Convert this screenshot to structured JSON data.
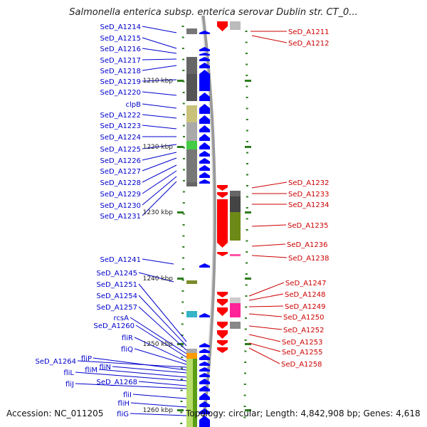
{
  "title": "Salmonella enterica subsp. enterica serovar Dublin str. CT_0...",
  "footer": {
    "accession": "Accession: NC_011205",
    "topology": "Topology: circular; Length: 4,842,908 bp; Genes: 4,618"
  },
  "colors": {
    "forward_gene": "#0000ff",
    "reverse_gene": "#ff0000",
    "label_link_forward": "#0000cc",
    "label_link_reverse": "#cc0000",
    "backbone": "#999999",
    "tick": "#2e7d1e"
  },
  "ruler_labels": [
    "1210 kbp",
    "1220 kbp",
    "1230 kbp",
    "1240 kbp",
    "1250 kbp",
    "1260 kbp"
  ],
  "left_labels": [
    "SeD_A1214",
    "SeD_A1215",
    "SeD_A1216",
    "SeD_A1217",
    "SeD_A1218",
    "SeD_A1219",
    "SeD_A1220",
    "clpB",
    "SeD_A1222",
    "SeD_A1223",
    "SeD_A1224",
    "SeD_A1225",
    "SeD_A1226",
    "SeD_A1227",
    "SeD_A1228",
    "SeD_A1229",
    "SeD_A1230",
    "SeD_A1231",
    "SeD_A1241",
    "SeD_A1245",
    "SeD_A1251",
    "SeD_A1254",
    "SeD_A1257",
    "rcsA",
    "SeD_A1260",
    "fliR",
    "fliQ",
    "SeD_A1264",
    "fliP",
    "fliN",
    "fliM",
    "fliL",
    "SeD_A1268",
    "fliJ",
    "fliI",
    "fliH",
    "fliG"
  ],
  "right_labels": [
    "SeD_A1211",
    "SeD_A1212",
    "SeD_A1232",
    "SeD_A1233",
    "SeD_A1234",
    "SeD_A1235",
    "SeD_A1236",
    "SeD_A1238",
    "SeD_A1247",
    "SeD_A1248",
    "SeD_A1249",
    "SeD_A1250",
    "SeD_A1252",
    "SeD_A1253",
    "SeD_A1255",
    "SeD_A1258"
  ]
}
